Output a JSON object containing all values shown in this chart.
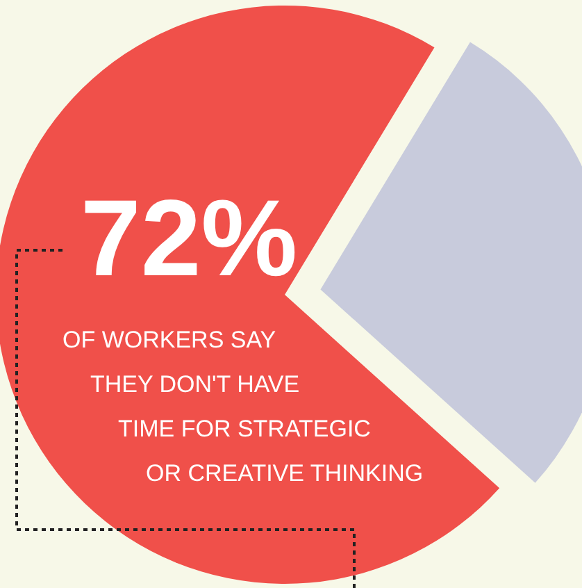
{
  "chart_data": {
    "type": "pie",
    "categories": [
      null,
      null
    ],
    "values": [
      72,
      28
    ],
    "colors": [
      "#f0504a",
      "#c8cbdc"
    ],
    "value_labels": [
      "72%",
      null
    ],
    "annotations": [
      "OF WORKERS SAY",
      "THEY DON'T HAVE",
      "TIME FOR STRATEGIC",
      "OR CREATIVE THINKING"
    ]
  }
}
